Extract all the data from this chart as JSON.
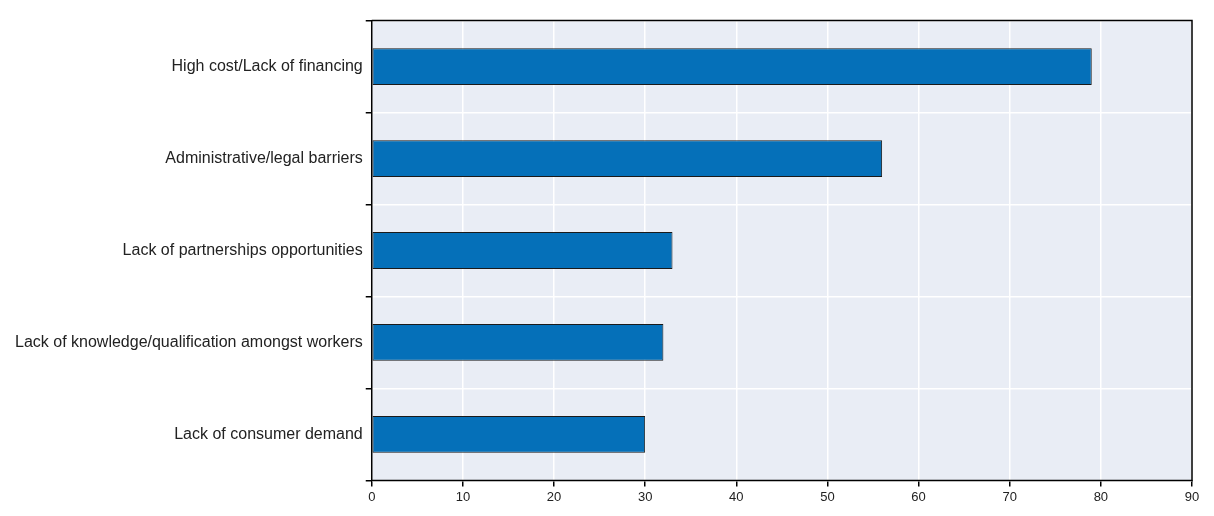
{
  "chart_data": {
    "type": "bar",
    "orientation": "horizontal",
    "categories": [
      "High cost/Lack of financing",
      "Administrative/legal barriers",
      "Lack of partnerships opportunities",
      "Lack of knowledge/qualification amongst workers",
      "Lack of consumer demand"
    ],
    "values": [
      79,
      56,
      33,
      32,
      30
    ],
    "color": "#0570b9",
    "xlim": [
      0,
      90
    ],
    "xticks": [
      0,
      10,
      20,
      30,
      40,
      50,
      60,
      70,
      80,
      90
    ],
    "grid": true
  }
}
